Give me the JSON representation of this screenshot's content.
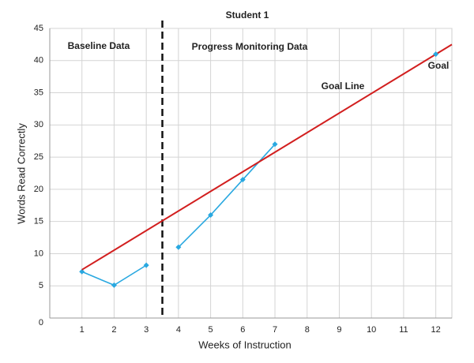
{
  "chart_data": {
    "type": "line",
    "title": "Student 1",
    "xlabel": "Weeks of Instruction",
    "ylabel": "Words Read Correctly",
    "xlim": [
      0,
      12.5
    ],
    "ylim": [
      0,
      45
    ],
    "xticks": [
      1,
      2,
      3,
      4,
      5,
      6,
      7,
      8,
      9,
      10,
      11,
      12
    ],
    "yticks": [
      0,
      5,
      10,
      15,
      20,
      25,
      30,
      35,
      40,
      45
    ],
    "grid": true,
    "phase_line_x": 3.5,
    "series": [
      {
        "name": "Baseline Data",
        "color": "#29a8e0",
        "x": [
          1,
          2,
          3
        ],
        "values": [
          7.2,
          5.1,
          8.2
        ],
        "line": true,
        "marker": true
      },
      {
        "name": "Progress Monitoring Data",
        "color": "#29a8e0",
        "x": [
          4,
          5,
          6,
          7
        ],
        "values": [
          11,
          16,
          21.5,
          27
        ],
        "line": true,
        "marker": true
      },
      {
        "name": "Goal Line",
        "color": "#d21f1f",
        "x": [
          1,
          12.5
        ],
        "values": [
          7.5,
          42.5
        ],
        "line": true,
        "marker": false
      },
      {
        "name": "Goal",
        "color": "#29a8e0",
        "x": [
          12
        ],
        "values": [
          41
        ],
        "line": false,
        "marker": true
      }
    ]
  }
}
